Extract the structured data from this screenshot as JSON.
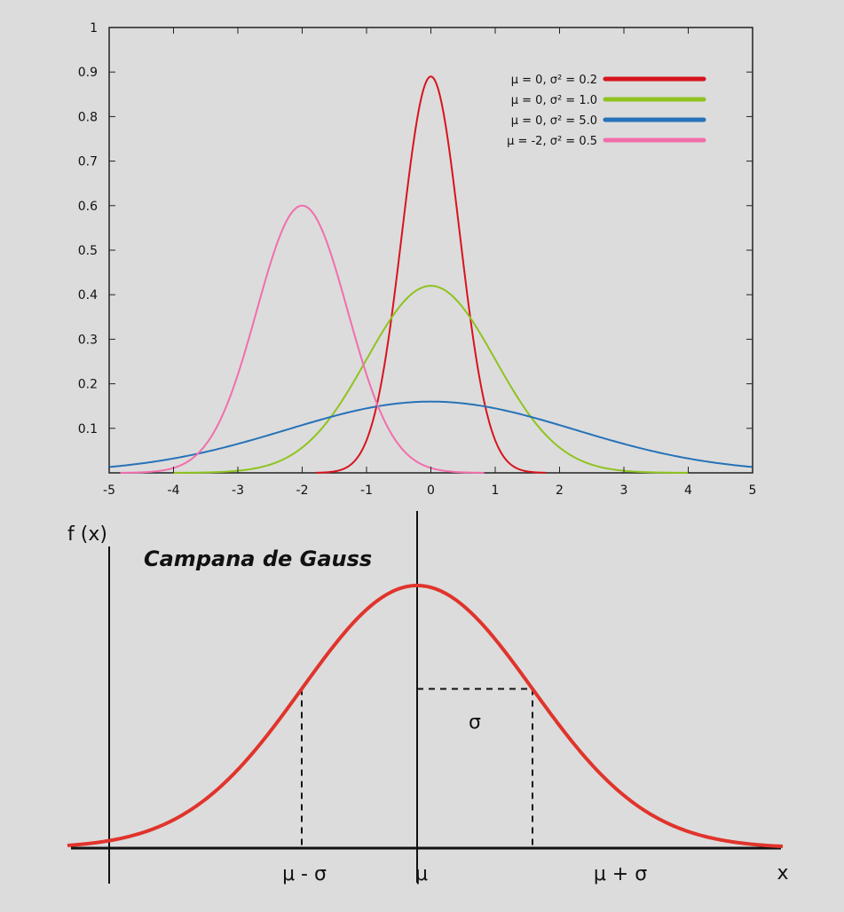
{
  "chart_data": [
    {
      "type": "line",
      "title": "",
      "xlabel": "",
      "ylabel": "",
      "xlim": [
        -5,
        5
      ],
      "ylim": [
        0,
        1
      ],
      "x_ticks": [
        "-5",
        "-4",
        "-3",
        "-2",
        "-1",
        "0",
        "1",
        "2",
        "3",
        "4",
        "5"
      ],
      "y_ticks": [
        "0.1",
        "0.2",
        "0.3",
        "0.4",
        "0.5",
        "0.6",
        "0.7",
        "0.8",
        "0.9",
        "1"
      ],
      "grid": false,
      "legend_position": "top-right",
      "series": [
        {
          "name": "μ = 0, σ² = 0.2",
          "mu": 0,
          "variance": 0.2,
          "peak": 0.89,
          "color": "#d7141e"
        },
        {
          "name": "μ = 0, σ² = 1.0",
          "mu": 0,
          "variance": 1.0,
          "peak": 0.42,
          "color": "#8fc31f"
        },
        {
          "name": "μ = 0, σ² = 5.0",
          "mu": 0,
          "variance": 5.0,
          "peak": 0.16,
          "color": "#2672b8"
        },
        {
          "name": "μ = -2, σ² = 0.5",
          "mu": -2,
          "variance": 0.5,
          "peak": 0.6,
          "color": "#f26eab"
        }
      ]
    },
    {
      "type": "line",
      "title": "Campana de Gauss",
      "ylabel": "f (x)",
      "xlabel": "x",
      "x_ticks": [
        "μ - σ",
        "μ",
        "μ + σ"
      ],
      "annotation": "σ",
      "series": [
        {
          "mu": 0,
          "sigma": 1,
          "color": "#e0342c"
        }
      ]
    }
  ]
}
